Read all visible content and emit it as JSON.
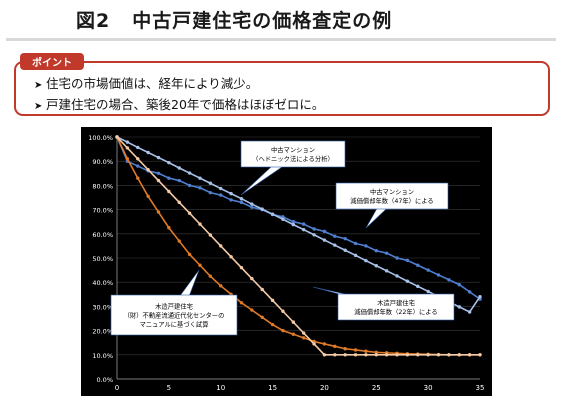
{
  "header": {
    "figure_number": "図2",
    "title": "中古戸建住宅の価格査定の例"
  },
  "points": {
    "label": "ポイント",
    "items": [
      "住宅の市場価値は、経年により減少。",
      "戸建住宅の場合、築後20年で価格はほぼゼロに。"
    ]
  },
  "chart_data": {
    "type": "line",
    "x": [
      0,
      1,
      2,
      3,
      4,
      5,
      6,
      7,
      8,
      9,
      10,
      11,
      12,
      13,
      14,
      15,
      16,
      17,
      18,
      19,
      20,
      21,
      22,
      23,
      24,
      25,
      26,
      27,
      28,
      29,
      30,
      31,
      32,
      33,
      34,
      35
    ],
    "xticks": [
      0,
      5,
      10,
      15,
      20,
      25,
      30,
      35
    ],
    "yticks": [
      "0.0%",
      "10.0%",
      "20.0%",
      "30.0%",
      "40.0%",
      "50.0%",
      "60.0%",
      "70.0%",
      "80.0%",
      "90.0%",
      "100.0%"
    ],
    "xlim": [
      0,
      35
    ],
    "ylim": [
      0,
      100
    ],
    "series": [
      {
        "name": "中古マンション（ヘドニック法による分析）",
        "color": "#4f7fd0",
        "values": [
          100,
          90,
          88,
          86,
          85,
          83,
          82,
          80,
          79,
          77,
          76,
          74,
          73,
          71,
          70,
          68,
          67,
          65,
          64,
          62,
          61,
          59,
          58,
          56,
          55,
          53,
          52,
          50,
          49,
          47,
          45,
          43,
          41,
          39,
          36,
          33
        ]
      },
      {
        "name": "中古マンション 減価償却年数（47年）による",
        "color": "#a9c2ea",
        "values": [
          100,
          97.9,
          95.7,
          93.6,
          91.5,
          89.4,
          87.2,
          85.1,
          83.0,
          80.9,
          78.7,
          76.6,
          74.5,
          72.3,
          70.2,
          68.1,
          66.0,
          63.8,
          61.7,
          59.6,
          57.4,
          55.3,
          53.2,
          51.1,
          48.9,
          46.8,
          44.7,
          42.6,
          40.4,
          38.3,
          36.2,
          34.0,
          31.9,
          29.8,
          27.7,
          34
        ]
      },
      {
        "name": "木造戸建住宅（財）不動産流通近代化センターのマニュアルに基づく試算",
        "color": "#e07a26",
        "values": [
          100,
          91,
          83,
          75.5,
          69,
          62.5,
          57,
          51.5,
          47,
          42.5,
          38.5,
          35,
          31.5,
          28.5,
          25.5,
          22.5,
          20,
          18.5,
          17,
          15.5,
          14.5,
          13.5,
          12.5,
          12,
          11.5,
          11,
          10.8,
          10.6,
          10.4,
          10.3,
          10.2,
          10.1,
          10,
          10,
          10,
          10
        ]
      },
      {
        "name": "木造戸建住宅 減価償却年数（22年）による",
        "color": "#f5cba7",
        "values": [
          100,
          95.5,
          91,
          86.5,
          82,
          77.5,
          73,
          68.5,
          64,
          59.5,
          55,
          50.5,
          46,
          41.5,
          37,
          32.5,
          28,
          23.5,
          19,
          14.5,
          10,
          10,
          10,
          10,
          10,
          10,
          10,
          10,
          10,
          10,
          10,
          10,
          10,
          10,
          10,
          10
        ]
      }
    ],
    "annotations": [
      {
        "lines": [
          "中古マンション",
          "（ヘドニック法による分析）"
        ],
        "series": 0
      },
      {
        "lines": [
          "中古マンション",
          "減価償却年数（47年）による"
        ],
        "series": 1
      },
      {
        "lines": [
          "木造戸建住宅",
          "（財）不動産流通近代化センターの",
          "マニュアルに基づく試算"
        ],
        "series": 2
      },
      {
        "lines": [
          "木造戸建住宅",
          "減価償却年数（22年）による"
        ],
        "series": 3
      }
    ]
  }
}
